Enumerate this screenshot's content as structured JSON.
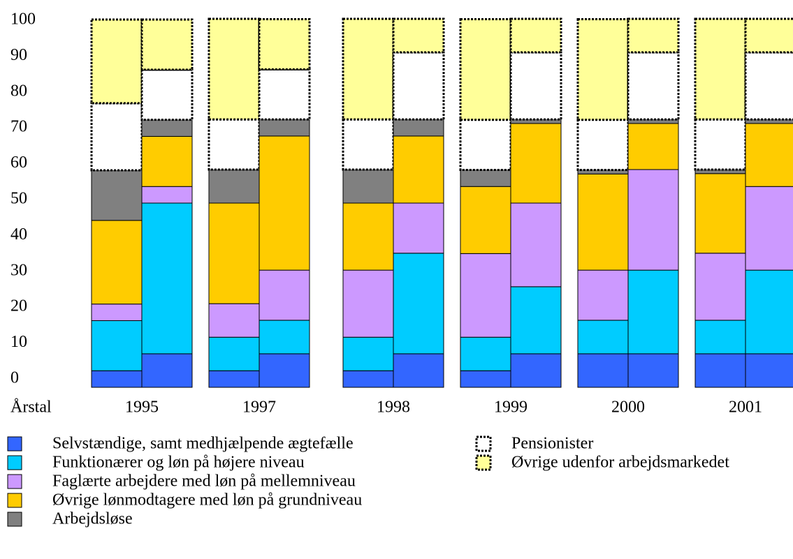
{
  "chart_data": {
    "type": "stacked-bar-pairs",
    "x_label": "Årstal",
    "groups": [
      "1995",
      "1997",
      "1998",
      "1999",
      "2000",
      "2001"
    ],
    "ylim": [
      0,
      100
    ],
    "yticks": [
      0,
      10,
      20,
      30,
      40,
      50,
      60,
      70,
      80,
      90,
      100
    ],
    "series": [
      {
        "name": "Selvstændige, samt medhjælpende ægtefælle",
        "color": "#3366ff",
        "values": [
          4.5,
          9.1,
          4.5,
          9.1,
          4.5,
          9.1,
          4.5,
          9.1,
          9.1,
          9.1,
          9.1,
          9.1
        ]
      },
      {
        "name": "Funktionærer og løn på højere niveau",
        "color": "#00ccff",
        "values": [
          13.6,
          40.9,
          9.1,
          9.1,
          9.1,
          27.3,
          9.1,
          18.2,
          9.1,
          22.7,
          9.1,
          22.7
        ]
      },
      {
        "name": "Faglærte arbejdere med løn på mellemniveau",
        "color": "#cc99ff",
        "values": [
          4.5,
          4.5,
          9.1,
          13.6,
          18.2,
          13.6,
          22.7,
          22.7,
          13.6,
          27.3,
          18.2,
          22.7
        ]
      },
      {
        "name": "Øvrige lønmodtagere med løn på grundniveau",
        "color": "#ffcc00",
        "values": [
          22.7,
          13.6,
          27.3,
          36.4,
          18.2,
          18.2,
          18.2,
          21.6,
          26.1,
          12.5,
          21.6,
          17.1
        ]
      },
      {
        "name": "Arbejdsløse",
        "color": "#808080",
        "values": [
          13.6,
          4.5,
          9.1,
          4.5,
          9.1,
          4.5,
          4.5,
          1.1,
          1.1,
          1.1,
          1.1,
          1.1
        ]
      },
      {
        "name": "Pensionister",
        "color": "#ffffff",
        "dotted": true,
        "values": [
          18.2,
          13.6,
          13.6,
          13.6,
          13.6,
          18.2,
          13.6,
          18.2,
          13.6,
          18.2,
          13.6,
          18.2
        ]
      },
      {
        "name": "Øvrige udenfor arbejdsmarkedet",
        "color": "#ffff99",
        "dotted": true,
        "values": [
          22.7,
          13.6,
          27.3,
          13.6,
          27.3,
          9.1,
          27.3,
          9.1,
          27.3,
          9.1,
          27.3,
          9.1
        ]
      }
    ]
  }
}
